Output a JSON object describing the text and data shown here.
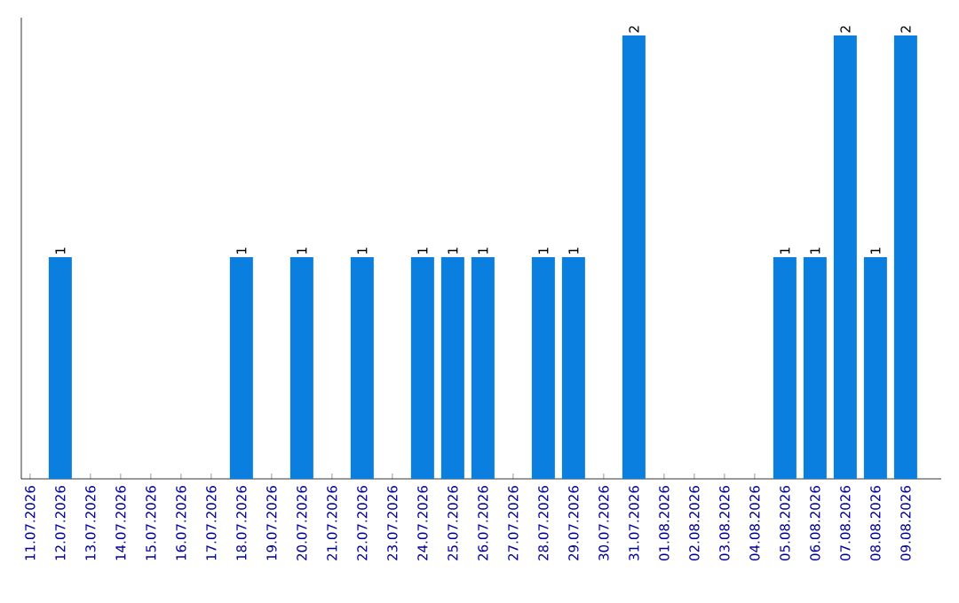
{
  "chart_data": {
    "type": "bar",
    "categories": [
      "11.07.2026",
      "12.07.2026",
      "13.07.2026",
      "14.07.2026",
      "15.07.2026",
      "16.07.2026",
      "17.07.2026",
      "18.07.2026",
      "19.07.2026",
      "20.07.2026",
      "21.07.2026",
      "22.07.2026",
      "23.07.2026",
      "24.07.2026",
      "25.07.2026",
      "26.07.2026",
      "27.07.2026",
      "28.07.2026",
      "29.07.2026",
      "30.07.2026",
      "31.07.2026",
      "01.08.2026",
      "02.08.2026",
      "03.08.2026",
      "04.08.2026",
      "05.08.2026",
      "06.08.2026",
      "07.08.2026",
      "08.08.2026",
      "09.08.2026"
    ],
    "values": [
      0,
      1,
      0,
      0,
      0,
      0,
      0,
      1,
      0,
      1,
      0,
      1,
      0,
      1,
      1,
      1,
      0,
      1,
      1,
      0,
      2,
      0,
      0,
      0,
      0,
      1,
      1,
      2,
      1,
      2
    ],
    "value_labels": [
      null,
      "1",
      null,
      null,
      null,
      null,
      null,
      "1",
      null,
      "1",
      null,
      "1",
      null,
      "1",
      "1",
      "1",
      null,
      "1",
      "1",
      null,
      "2",
      null,
      null,
      null,
      null,
      "1",
      "1",
      "2",
      "1",
      "2"
    ],
    "color": "#0a7fe0",
    "ylim": [
      0,
      2.08
    ],
    "tick_labels": "x",
    "grid": false
  }
}
